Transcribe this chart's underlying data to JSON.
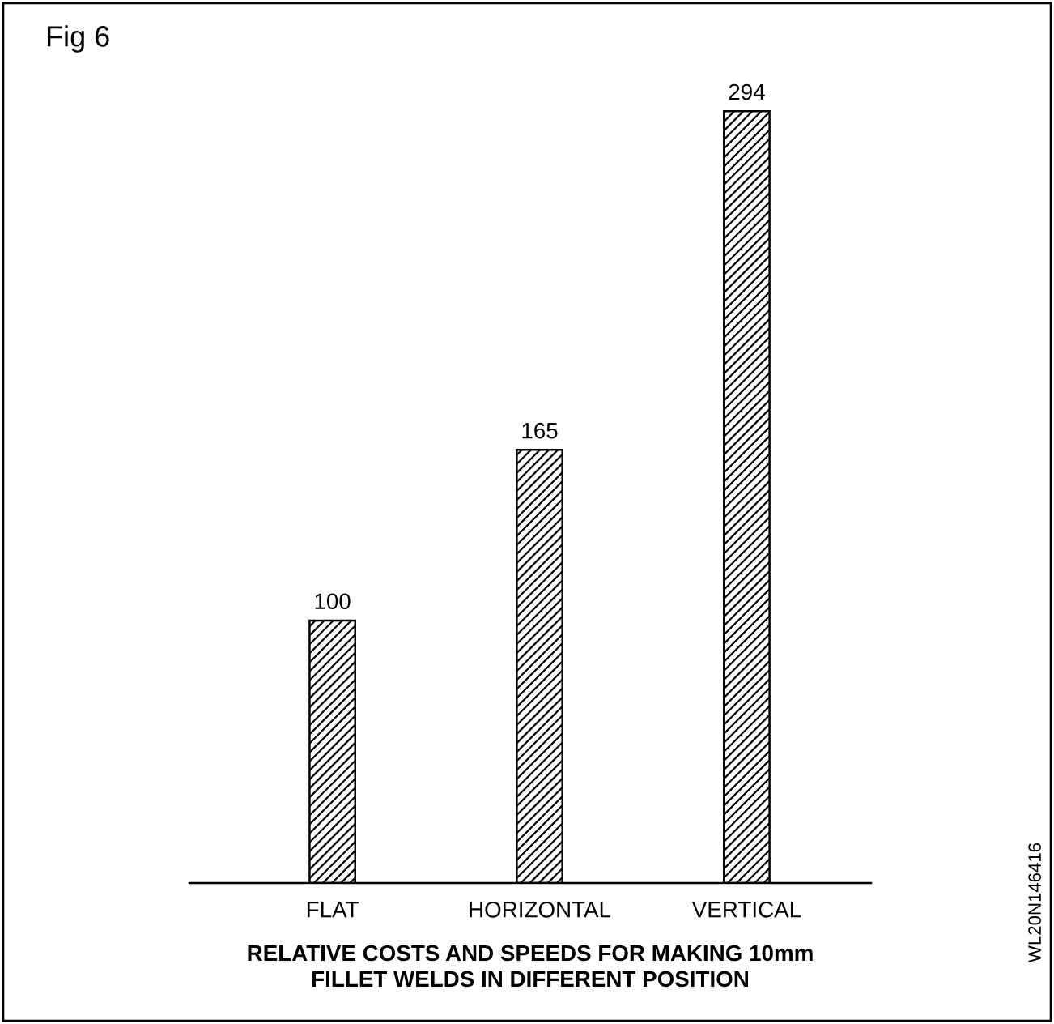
{
  "chart_data": {
    "type": "bar",
    "title": "Fig 6",
    "xlabel": "RELATIVE COSTS AND SPEEDS FOR MAKING 10mm\nFILLET WELDS IN DIFFERENT POSITION",
    "categories": [
      "FLAT",
      "HORIZONTAL",
      "VERTICAL"
    ],
    "values": [
      100,
      165,
      294
    ],
    "color": "#000000",
    "data_labels": true,
    "grid": false,
    "annotations": [
      "WL20N146416"
    ]
  }
}
